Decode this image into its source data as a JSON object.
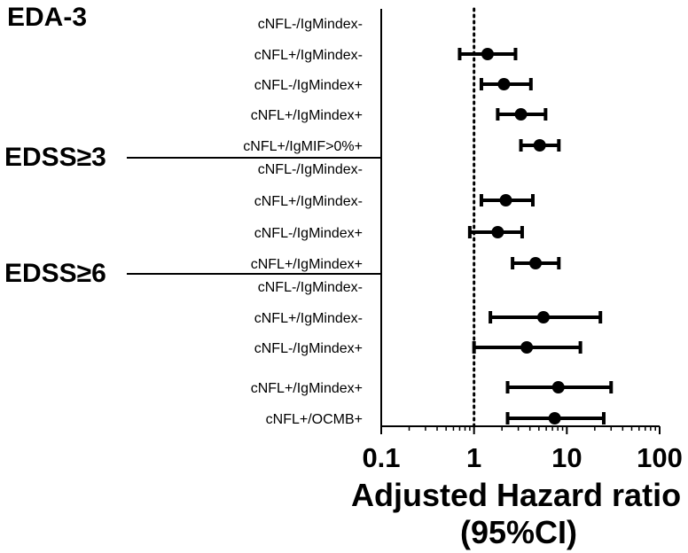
{
  "chart_data": {
    "type": "forest",
    "xscale": "log",
    "xlim": [
      0.1,
      100
    ],
    "xticks": [
      "0.1",
      "1",
      "10",
      "100"
    ],
    "reference_line": 1,
    "xlabel": "Adjusted Hazard ratio",
    "xlabel_sub": "(95%CI)",
    "groups": [
      {
        "name": "EDA-3",
        "rows": [
          {
            "label": "cNFL-/IgMindex-",
            "hr": null,
            "lo": null,
            "hi": null
          },
          {
            "label": "cNFL+/IgMindex-",
            "hr": 1.4,
            "lo": 0.7,
            "hi": 2.8
          },
          {
            "label": "cNFL-/IgMindex+",
            "hr": 2.1,
            "lo": 1.2,
            "hi": 4.1
          },
          {
            "label": "cNFL+/IgMindex+",
            "hr": 3.2,
            "lo": 1.8,
            "hi": 5.9
          },
          {
            "label": "cNFL+/IgMIF>0%+",
            "hr": 5.1,
            "lo": 3.2,
            "hi": 8.2
          }
        ]
      },
      {
        "name": "EDSS≥3",
        "rows": [
          {
            "label": "cNFL-/IgMindex-",
            "hr": null,
            "lo": null,
            "hi": null
          },
          {
            "label": "cNFL+/IgMindex-",
            "hr": 2.2,
            "lo": 1.2,
            "hi": 4.3
          },
          {
            "label": "cNFL-/IgMindex+",
            "hr": 1.8,
            "lo": 0.9,
            "hi": 3.3
          },
          {
            "label": "cNFL+/IgMindex+",
            "hr": 4.6,
            "lo": 2.6,
            "hi": 8.2
          }
        ]
      },
      {
        "name": "EDSS≥6",
        "rows": [
          {
            "label": "cNFL-/IgMindex-",
            "hr": null,
            "lo": null,
            "hi": null
          },
          {
            "label": "cNFL+/IgMindex-",
            "hr": 5.6,
            "lo": 1.5,
            "hi": 23
          },
          {
            "label": "cNFL-/IgMindex+",
            "hr": 3.7,
            "lo": 1.0,
            "hi": 14
          },
          {
            "label": "cNFL+/IgMindex+",
            "hr": 8.1,
            "lo": 2.3,
            "hi": 30
          },
          {
            "label": "cNFL+/OCMB+",
            "hr": 7.4,
            "lo": 2.3,
            "hi": 25
          }
        ]
      }
    ]
  }
}
